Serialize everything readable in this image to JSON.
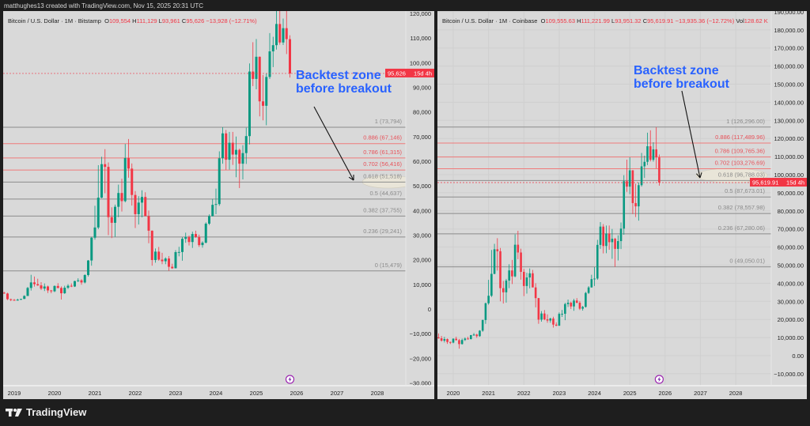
{
  "caption": "matthughes13 created with TradingView.com, Nov 15, 2025 20:31 UTC",
  "brand": "TradingView",
  "colors": {
    "up": "#089981",
    "down": "#f23645",
    "fib_red": "#f07a7a",
    "fib_gray": "#8c8c8c",
    "annotation": "#2962ff",
    "panel_bg": "#d9d9d9"
  },
  "chart_data": [
    {
      "type": "candlestick",
      "title": "Bitcoin / U.S. Dollar · 1M · Bitstamp",
      "ohlc": {
        "o": "109,554",
        "h": "111,129",
        "l": "93,961",
        "c": "95,626",
        "change": "−13,928 (−12.71%)"
      },
      "last_price_label": "95,626",
      "countdown": "15d 4h",
      "last_price": 95626,
      "ylim": [
        -30000,
        120000
      ],
      "y_ticks": [
        -30000,
        -20000,
        -10000,
        0,
        10000,
        20000,
        30000,
        40000,
        50000,
        60000,
        70000,
        80000,
        90000,
        100000,
        110000,
        120000
      ],
      "y_tick_labels": [
        "−30,000",
        "−20,000",
        "−10,000",
        "0",
        "10,000",
        "20,000",
        "30,000",
        "40,000",
        "50,000",
        "60,000",
        "70,000",
        "80,000",
        "90,000",
        "100,000",
        "110,000",
        "120,000"
      ],
      "x_tick_labels": [
        "2019",
        "2020",
        "2021",
        "2022",
        "2023",
        "2024",
        "2025",
        "2026",
        "2027",
        "2028"
      ],
      "fib": [
        {
          "label": "1 (73,794)",
          "value": 73794,
          "color": "gray"
        },
        {
          "label": "0.886 (67,146)",
          "value": 67146,
          "color": "red"
        },
        {
          "label": "0.786 (61,315)",
          "value": 61315,
          "color": "red"
        },
        {
          "label": "0.702 (56,416)",
          "value": 56416,
          "color": "red"
        },
        {
          "label": "0.618 (51,518)",
          "value": 51518,
          "color": "gray",
          "highlight": true
        },
        {
          "label": "0.5 (44,637)",
          "value": 44637,
          "color": "gray"
        },
        {
          "label": "0.382 (37,755)",
          "value": 37755,
          "color": "gray"
        },
        {
          "label": "0.236 (29,241)",
          "value": 29241,
          "color": "gray"
        },
        {
          "label": "0 (15,479)",
          "value": 15479,
          "color": "gray"
        }
      ],
      "annotation": {
        "line1": "Backtest zone",
        "line2": "before breakout"
      }
    },
    {
      "type": "candlestick",
      "title": "Bitcoin / U.S. Dollar · 1M · Coinbase",
      "ohlc": {
        "o": "109,555.63",
        "h": "111,221.99",
        "l": "93,951.32",
        "c": "95,619.91",
        "change": "−13,935.36 (−12.72%)",
        "vol": "128.62 K"
      },
      "last_price_label": "95,619.91",
      "countdown": "15d 4h",
      "last_price": 95619.91,
      "ylim": [
        -10000,
        190000
      ],
      "y_ticks": [
        -10000,
        0,
        10000,
        20000,
        30000,
        40000,
        50000,
        60000,
        70000,
        80000,
        90000,
        100000,
        110000,
        120000,
        130000,
        140000,
        150000,
        160000,
        170000,
        180000,
        190000
      ],
      "y_tick_labels": [
        "−10,000.00",
        "0.00",
        "10,000.00",
        "20,000.00",
        "30,000.00",
        "40,000.00",
        "50,000.00",
        "60,000.00",
        "70,000.00",
        "80,000.00",
        "90,000.00",
        "100,000.00",
        "110,000.00",
        "120,000.00",
        "130,000.00",
        "140,000.00",
        "150,000.00",
        "160,000.00",
        "170,000.00",
        "180,000.00",
        "190,000.00"
      ],
      "x_tick_labels": [
        "2020",
        "2021",
        "2022",
        "2023",
        "2024",
        "2025",
        "2026",
        "2027",
        "2028"
      ],
      "fib": [
        {
          "label": "1 (126,296.00)",
          "value": 126296,
          "color": "gray"
        },
        {
          "label": "0.886 (117,489.96)",
          "value": 117489.96,
          "color": "red"
        },
        {
          "label": "0.786 (109,765.36)",
          "value": 109765.36,
          "color": "red"
        },
        {
          "label": "0.702 (103,276.69)",
          "value": 103276.69,
          "color": "red"
        },
        {
          "label": "0.618 (96,788.03)",
          "value": 96788.03,
          "color": "gray",
          "highlight": true
        },
        {
          "label": "0.5 (87,673.01)",
          "value": 87673.01,
          "color": "gray"
        },
        {
          "label": "0.382 (78,557.98)",
          "value": 78557.98,
          "color": "gray"
        },
        {
          "label": "0.236 (67,280.06)",
          "value": 67280.06,
          "color": "gray"
        },
        {
          "label": "0 (49,050.01)",
          "value": 49050.01,
          "color": "gray"
        }
      ],
      "annotation": {
        "line1": "Backtest zone",
        "line2": "before breakout"
      }
    }
  ],
  "candles_columns": [
    "month",
    "open",
    "high",
    "low",
    "close"
  ],
  "candles": [
    [
      "2018-08",
      7730,
      7770,
      5880,
      7000
    ],
    [
      "2018-09",
      7000,
      7400,
      6100,
      6600
    ],
    [
      "2018-10",
      6600,
      7000,
      6200,
      6300
    ],
    [
      "2018-11",
      6300,
      6600,
      3600,
      4000
    ],
    [
      "2018-12",
      4000,
      4200,
      3200,
      3700
    ],
    [
      "2019-01",
      3700,
      4100,
      3400,
      3450
    ],
    [
      "2019-02",
      3450,
      4200,
      3400,
      3800
    ],
    [
      "2019-03",
      3800,
      4150,
      3700,
      4100
    ],
    [
      "2019-04",
      4100,
      5600,
      4050,
      5300
    ],
    [
      "2019-05",
      5300,
      9000,
      5300,
      8550
    ],
    [
      "2019-06",
      8550,
      13900,
      7500,
      10800
    ],
    [
      "2019-07",
      10800,
      13200,
      9100,
      10100
    ],
    [
      "2019-08",
      10100,
      12300,
      9400,
      9600
    ],
    [
      "2019-09",
      9600,
      10900,
      7700,
      8300
    ],
    [
      "2019-10",
      8300,
      10400,
      7300,
      9150
    ],
    [
      "2019-11",
      9150,
      9500,
      6500,
      7550
    ],
    [
      "2019-12",
      7550,
      7750,
      6400,
      7200
    ],
    [
      "2020-01",
      7200,
      9600,
      6850,
      9350
    ],
    [
      "2020-02",
      9350,
      10500,
      8400,
      8550
    ],
    [
      "2020-03",
      8550,
      9200,
      3850,
      6400
    ],
    [
      "2020-04",
      6400,
      9450,
      6150,
      8650
    ],
    [
      "2020-05",
      8650,
      10100,
      8100,
      9450
    ],
    [
      "2020-06",
      9450,
      10400,
      8900,
      9150
    ],
    [
      "2020-07",
      9150,
      11450,
      8950,
      11350
    ],
    [
      "2020-08",
      11350,
      12480,
      10950,
      11650
    ],
    [
      "2020-09",
      11650,
      12100,
      9850,
      10780
    ],
    [
      "2020-10",
      10780,
      14100,
      10400,
      13800
    ],
    [
      "2020-11",
      13800,
      19900,
      13200,
      19700
    ],
    [
      "2020-12",
      19700,
      29300,
      17600,
      28950
    ],
    [
      "2021-01",
      28950,
      41900,
      28150,
      33100
    ],
    [
      "2021-02",
      33100,
      58400,
      32400,
      45200
    ],
    [
      "2021-03",
      45200,
      61800,
      45000,
      58800
    ],
    [
      "2021-04",
      58800,
      64900,
      47000,
      57700
    ],
    [
      "2021-05",
      57700,
      59500,
      30000,
      37300
    ],
    [
      "2021-06",
      37300,
      41300,
      28800,
      35000
    ],
    [
      "2021-07",
      35000,
      42400,
      29300,
      41500
    ],
    [
      "2021-08",
      41500,
      50500,
      37300,
      47100
    ],
    [
      "2021-09",
      47100,
      52900,
      39600,
      43800
    ],
    [
      "2021-10",
      43800,
      67000,
      43300,
      61300
    ],
    [
      "2021-11",
      61300,
      69000,
      53300,
      57000
    ],
    [
      "2021-12",
      57000,
      59100,
      42000,
      46300
    ],
    [
      "2022-01",
      46300,
      47900,
      32900,
      38500
    ],
    [
      "2022-02",
      38500,
      45800,
      34300,
      43200
    ],
    [
      "2022-03",
      43200,
      48200,
      37200,
      45500
    ],
    [
      "2022-04",
      45500,
      47400,
      37700,
      37700
    ],
    [
      "2022-05",
      37700,
      40000,
      26700,
      31800
    ],
    [
      "2022-06",
      31800,
      31900,
      17600,
      19900
    ],
    [
      "2022-07",
      19900,
      24600,
      18800,
      23300
    ],
    [
      "2022-08",
      23300,
      25200,
      19600,
      20050
    ],
    [
      "2022-09",
      20050,
      22800,
      18200,
      19400
    ],
    [
      "2022-10",
      19400,
      21000,
      18200,
      20500
    ],
    [
      "2022-11",
      20500,
      21500,
      15500,
      17150
    ],
    [
      "2022-12",
      17150,
      18400,
      16300,
      16550
    ],
    [
      "2023-01",
      16550,
      23900,
      16500,
      23100
    ],
    [
      "2023-02",
      23100,
      25250,
      21400,
      23150
    ],
    [
      "2023-03",
      23150,
      29200,
      19600,
      28500
    ],
    [
      "2023-04",
      28500,
      31000,
      26900,
      29250
    ],
    [
      "2023-05",
      29250,
      29850,
      25800,
      27200
    ],
    [
      "2023-06",
      27200,
      31400,
      24800,
      30450
    ],
    [
      "2023-07",
      30450,
      31800,
      28900,
      29250
    ],
    [
      "2023-08",
      29250,
      30200,
      25200,
      25950
    ],
    [
      "2023-09",
      25950,
      27500,
      24900,
      26950
    ],
    [
      "2023-10",
      26950,
      35200,
      26600,
      34650
    ],
    [
      "2023-11",
      34650,
      38400,
      34100,
      37700
    ],
    [
      "2023-12",
      37700,
      44700,
      37600,
      42300
    ],
    [
      "2024-01",
      42300,
      48900,
      38500,
      42600
    ],
    [
      "2024-02",
      42600,
      64000,
      41900,
      61200
    ],
    [
      "2024-03",
      61200,
      73800,
      59000,
      71300
    ],
    [
      "2024-04",
      71300,
      72700,
      56500,
      60600
    ],
    [
      "2024-05",
      60600,
      71900,
      56600,
      67500
    ],
    [
      "2024-06",
      67500,
      71900,
      58500,
      62700
    ],
    [
      "2024-07",
      62700,
      70000,
      53500,
      64600
    ],
    [
      "2024-08",
      64600,
      65100,
      49100,
      59000
    ],
    [
      "2024-09",
      59000,
      66500,
      52600,
      63300
    ],
    [
      "2024-10",
      63300,
      73600,
      58900,
      70200
    ],
    [
      "2024-11",
      70200,
      99700,
      66800,
      96400
    ],
    [
      "2024-12",
      96400,
      108300,
      90500,
      93400
    ],
    [
      "2025-01",
      93400,
      109600,
      89200,
      102400
    ],
    [
      "2025-02",
      102400,
      102500,
      78200,
      84300
    ],
    [
      "2025-03",
      84300,
      95000,
      76600,
      82500
    ],
    [
      "2025-04",
      82500,
      95700,
      74600,
      94200
    ],
    [
      "2025-05",
      94200,
      112000,
      93400,
      104600
    ],
    [
      "2025-06",
      104600,
      110500,
      98200,
      107100
    ],
    [
      "2025-07",
      107100,
      123200,
      105300,
      115700
    ],
    [
      "2025-08",
      115700,
      124500,
      107300,
      108200
    ],
    [
      "2025-09",
      108200,
      117900,
      107200,
      114000
    ],
    [
      "2025-10",
      114000,
      126200,
      103500,
      109554
    ],
    [
      "2025-11",
      109554,
      111129,
      93961,
      95626
    ]
  ]
}
